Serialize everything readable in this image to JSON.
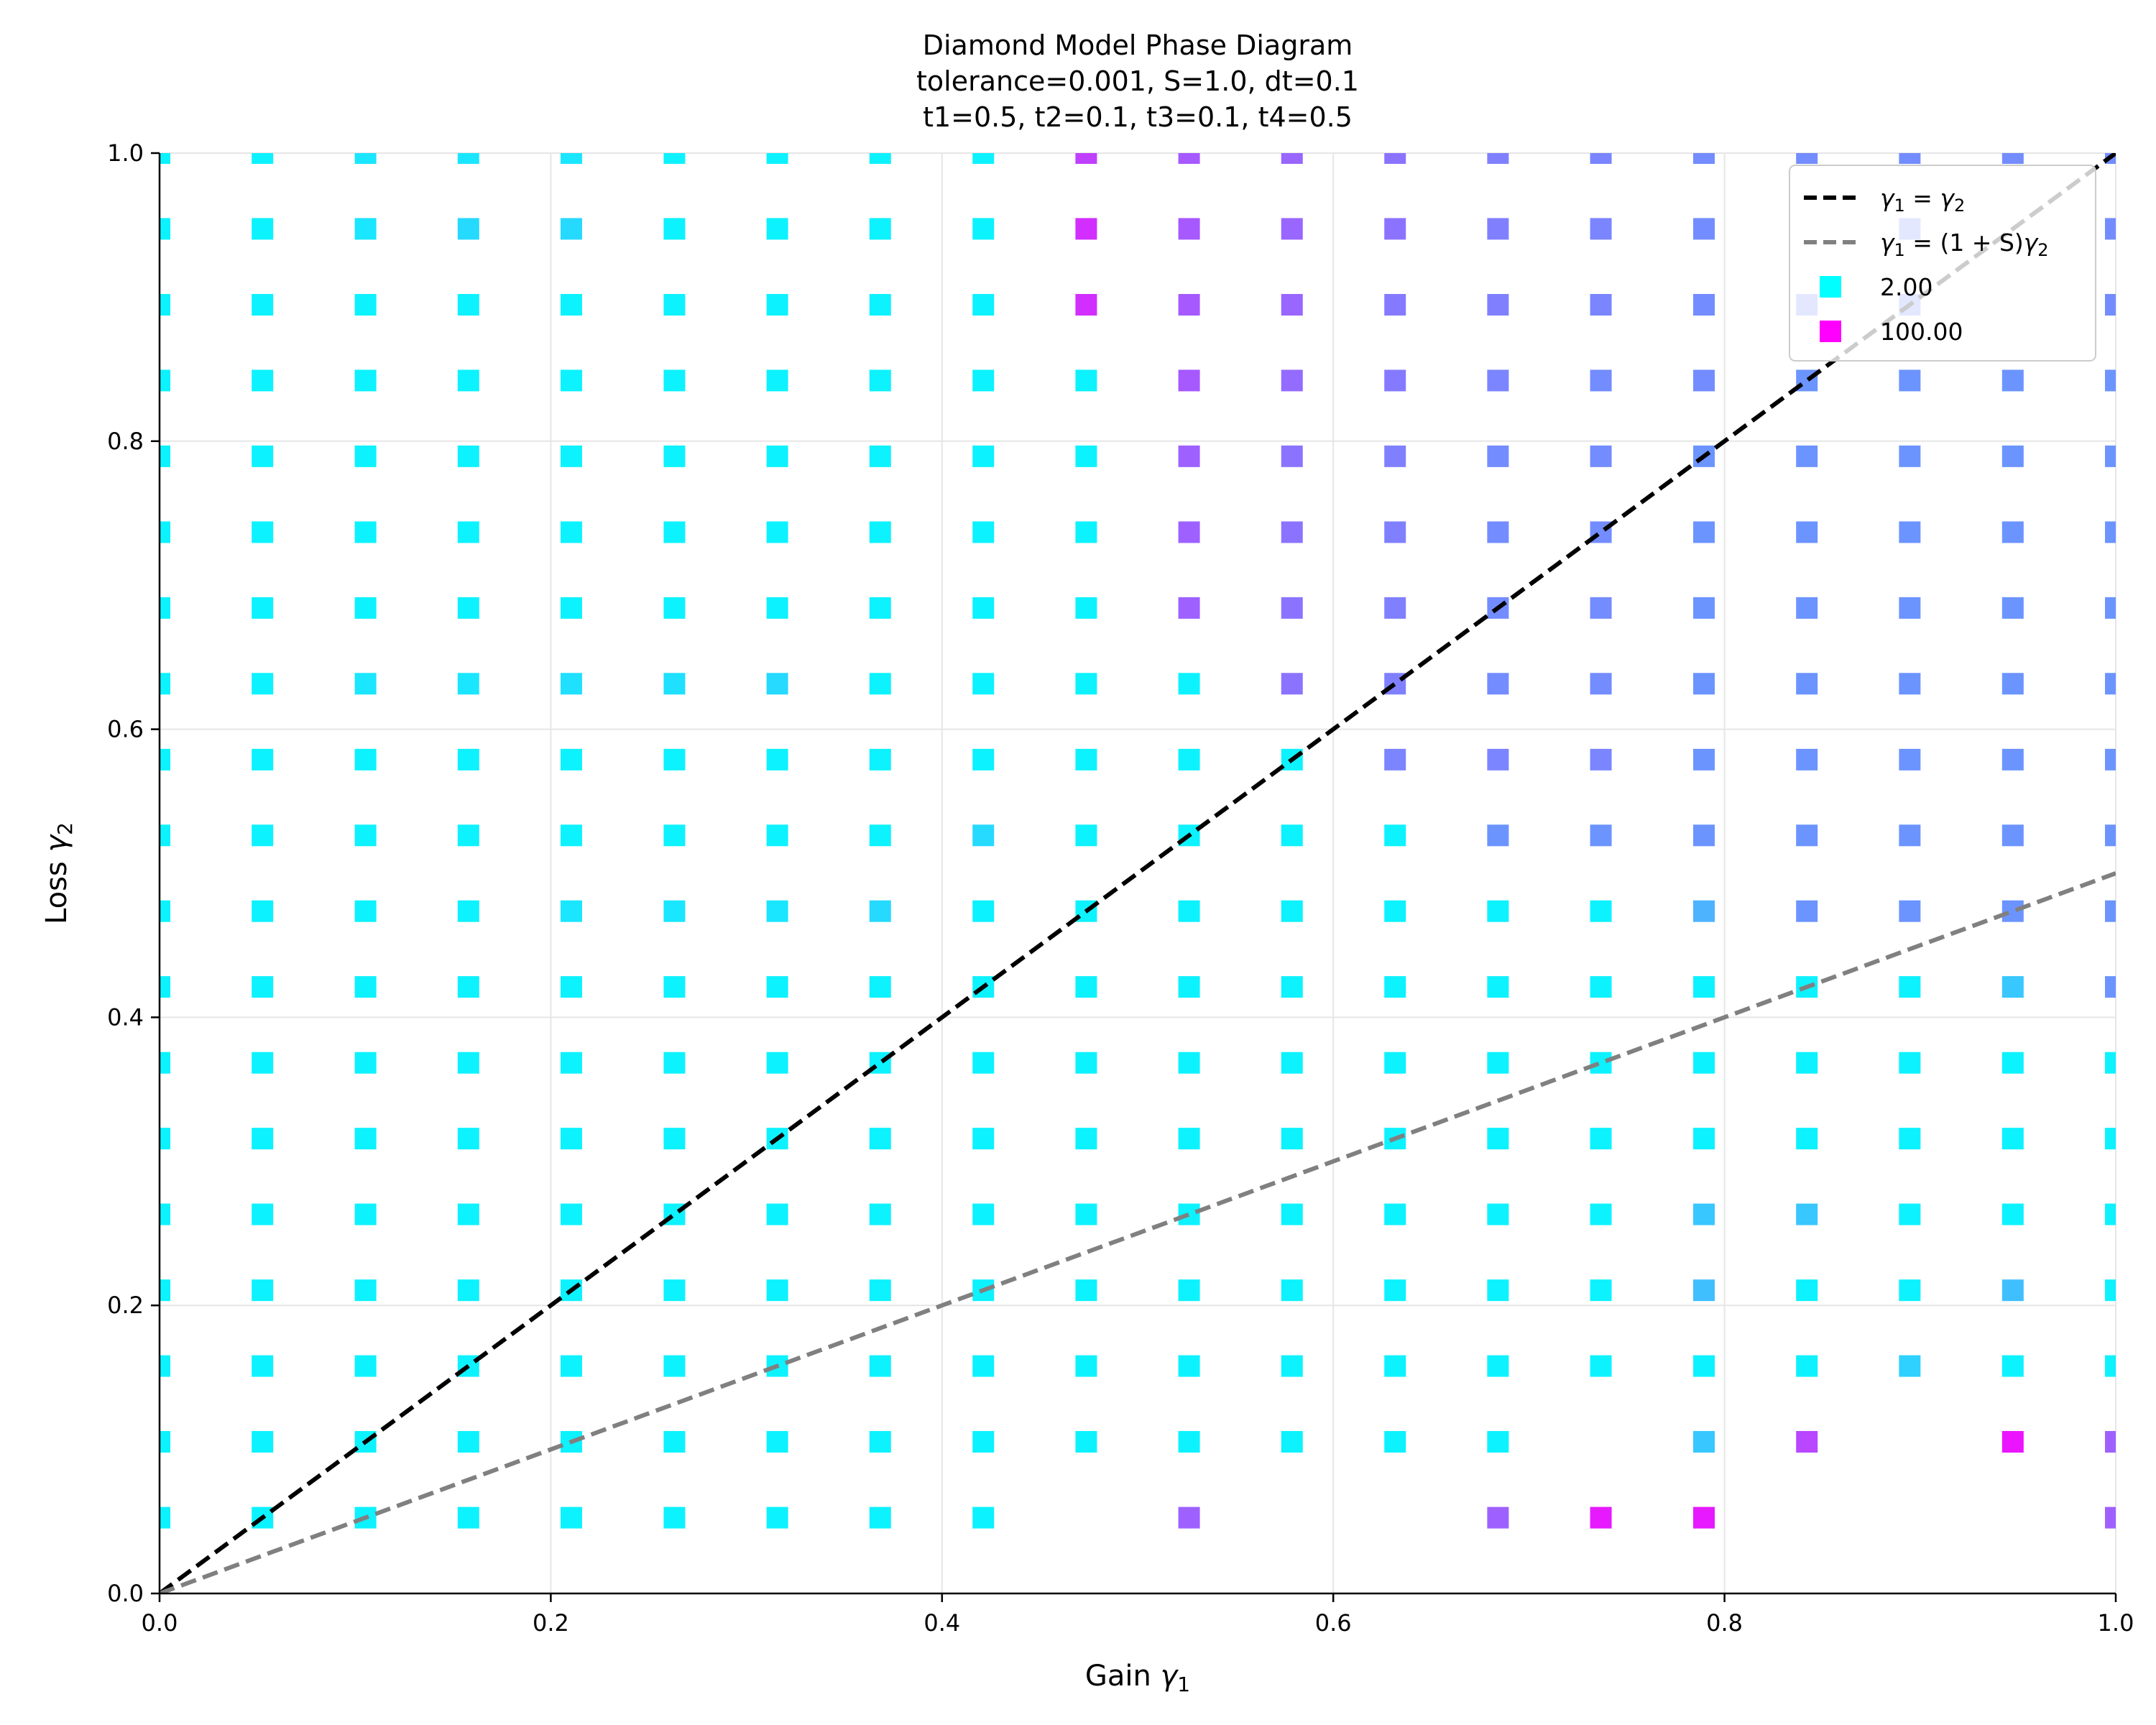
{
  "chart_data": {
    "type": "scatter",
    "title": "Diamond Model Phase Diagram",
    "subtitle_lines": [
      "tolerance=0.001, S=1.0, dt=0.1",
      "t1=0.5, t2=0.1, t3=0.1, t4=0.5"
    ],
    "xlabel": "Gain γ1",
    "ylabel": "Loss γ2",
    "xlim": [
      0.0,
      1.0
    ],
    "ylim": [
      0.0,
      1.0
    ],
    "xticks": [
      "0.0",
      "0.2",
      "0.4",
      "0.6",
      "0.8",
      "1.0"
    ],
    "yticks": [
      "0.0",
      "0.2",
      "0.4",
      "0.6",
      "0.8",
      "1.0"
    ],
    "grid": true,
    "legend_position": "top-right",
    "colormap": "cool",
    "color_range": [
      2.0,
      100.0
    ],
    "grid_values": [
      0.0,
      0.0526,
      0.1053,
      0.1579,
      0.2105,
      0.2632,
      0.3158,
      0.3684,
      0.4211,
      0.4737,
      0.5263,
      0.5789,
      0.6316,
      0.6842,
      0.7368,
      0.7895,
      0.8421,
      0.8947,
      0.9474,
      1.0
    ],
    "lines": [
      {
        "name": "γ1 = γ2",
        "slope": 1.0,
        "color": "#000000",
        "style": "dashed"
      },
      {
        "name": "γ1 = (1 + S)γ2",
        "slope": 0.5,
        "color": "#808080",
        "style": "dashed"
      }
    ],
    "legend": [
      {
        "label": "γ1 = γ2",
        "kind": "line",
        "color": "#000000"
      },
      {
        "label": "γ1 = (1 + S)γ2",
        "kind": "line",
        "color": "#808080"
      },
      {
        "label": "2.00",
        "kind": "marker",
        "color": "#00ffff"
      },
      {
        "label": "100.00",
        "kind": "marker",
        "color": "#ff00ff"
      }
    ],
    "color_rows_note": "rows ordered from y=0.0 (first) to y=1.0 (last); columns x=0..1; values are colormap fraction t in [0,1]; null = no point",
    "color_rows": [
      [
        null,
        null,
        null,
        null,
        null,
        null,
        null,
        null,
        null,
        null,
        null,
        null,
        null,
        null,
        null,
        null,
        null,
        null,
        null,
        null
      ],
      [
        0.05,
        0.05,
        0.05,
        0.05,
        0.05,
        0.05,
        0.05,
        0.05,
        0.05,
        null,
        0.62,
        null,
        null,
        0.62,
        0.9,
        0.9,
        null,
        null,
        null,
        0.62
      ],
      [
        0.05,
        0.05,
        0.05,
        0.05,
        0.05,
        0.05,
        0.05,
        0.05,
        0.05,
        0.05,
        0.05,
        0.05,
        0.05,
        0.05,
        null,
        0.22,
        0.72,
        null,
        0.92,
        0.62
      ],
      [
        0.05,
        0.05,
        0.05,
        0.05,
        0.05,
        0.05,
        0.05,
        0.05,
        0.05,
        0.05,
        0.05,
        0.05,
        0.05,
        0.05,
        0.05,
        0.05,
        0.05,
        0.18,
        0.05,
        0.05
      ],
      [
        0.05,
        0.05,
        0.05,
        0.05,
        0.05,
        0.05,
        0.05,
        0.05,
        0.05,
        0.05,
        0.05,
        0.05,
        0.05,
        0.05,
        0.05,
        0.25,
        0.05,
        0.05,
        0.25,
        0.05
      ],
      [
        0.05,
        0.05,
        0.05,
        0.05,
        0.05,
        0.05,
        0.05,
        0.05,
        0.05,
        0.05,
        0.05,
        0.05,
        0.05,
        0.05,
        0.05,
        0.22,
        0.22,
        0.05,
        0.05,
        0.05
      ],
      [
        0.05,
        0.05,
        0.05,
        0.05,
        0.05,
        0.05,
        0.05,
        0.05,
        0.05,
        0.05,
        0.05,
        0.05,
        0.05,
        0.05,
        0.05,
        0.05,
        0.05,
        0.05,
        0.05,
        0.05
      ],
      [
        0.05,
        0.05,
        0.05,
        0.05,
        0.05,
        0.05,
        0.05,
        0.05,
        0.05,
        0.05,
        0.05,
        0.05,
        0.05,
        0.05,
        0.05,
        0.05,
        0.05,
        0.05,
        0.05,
        0.05
      ],
      [
        0.05,
        0.05,
        0.05,
        0.05,
        0.05,
        0.05,
        0.05,
        0.05,
        0.05,
        0.05,
        0.05,
        0.05,
        0.05,
        0.05,
        0.05,
        0.05,
        0.05,
        0.05,
        0.22,
        0.42
      ],
      [
        0.05,
        0.05,
        0.05,
        0.05,
        0.1,
        0.1,
        0.1,
        0.15,
        0.05,
        0.05,
        0.05,
        0.05,
        0.05,
        0.05,
        0.05,
        0.3,
        0.42,
        0.42,
        0.42,
        0.42
      ],
      [
        0.05,
        0.05,
        0.05,
        0.05,
        0.05,
        0.05,
        0.05,
        0.05,
        0.15,
        0.05,
        0.05,
        0.05,
        0.05,
        0.42,
        0.42,
        0.42,
        0.42,
        0.42,
        0.42,
        0.42
      ],
      [
        0.05,
        0.05,
        0.05,
        0.05,
        0.05,
        0.05,
        0.05,
        0.05,
        0.05,
        0.05,
        0.05,
        0.05,
        0.48,
        0.48,
        0.48,
        0.42,
        0.42,
        0.42,
        0.42,
        0.42
      ],
      [
        0.05,
        0.05,
        0.1,
        0.1,
        0.12,
        0.12,
        0.15,
        0.05,
        0.05,
        0.05,
        0.05,
        0.55,
        0.5,
        0.45,
        0.45,
        0.42,
        0.42,
        0.42,
        0.42,
        0.42
      ],
      [
        0.05,
        0.05,
        0.05,
        0.05,
        0.05,
        0.05,
        0.05,
        0.05,
        0.05,
        0.05,
        0.62,
        0.55,
        0.5,
        0.45,
        0.45,
        0.42,
        0.42,
        0.42,
        0.42,
        0.42
      ],
      [
        0.05,
        0.05,
        0.05,
        0.05,
        0.05,
        0.05,
        0.05,
        0.05,
        0.05,
        0.05,
        0.62,
        0.55,
        0.5,
        0.45,
        0.45,
        0.42,
        0.42,
        0.42,
        0.42,
        0.42
      ],
      [
        0.05,
        0.05,
        0.05,
        0.05,
        0.05,
        0.05,
        0.05,
        0.05,
        0.05,
        0.05,
        0.62,
        0.55,
        0.5,
        0.45,
        0.45,
        0.42,
        0.42,
        0.42,
        0.42,
        0.42
      ],
      [
        0.05,
        0.05,
        0.05,
        0.05,
        0.05,
        0.05,
        0.05,
        0.05,
        0.05,
        0.05,
        0.65,
        0.58,
        0.52,
        0.48,
        0.45,
        0.45,
        0.42,
        0.42,
        0.42,
        0.42
      ],
      [
        0.05,
        0.05,
        0.05,
        0.05,
        0.05,
        0.05,
        0.05,
        0.05,
        0.05,
        0.82,
        0.65,
        0.6,
        0.52,
        0.5,
        0.48,
        0.45,
        0.45,
        0.45,
        null,
        0.45
      ],
      [
        0.05,
        0.05,
        0.1,
        0.15,
        0.15,
        0.05,
        0.05,
        0.05,
        0.05,
        0.82,
        0.65,
        0.6,
        0.55,
        0.5,
        0.48,
        0.45,
        null,
        0.45,
        null,
        0.45
      ],
      [
        0.05,
        0.05,
        0.1,
        0.1,
        0.1,
        0.05,
        0.05,
        0.05,
        0.05,
        0.75,
        0.65,
        0.6,
        0.55,
        0.5,
        0.48,
        0.45,
        0.45,
        0.45,
        0.45,
        0.45
      ]
    ]
  }
}
